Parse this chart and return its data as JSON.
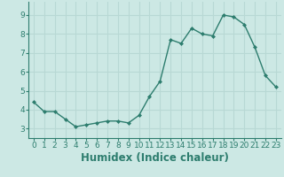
{
  "x": [
    0,
    1,
    2,
    3,
    4,
    5,
    6,
    7,
    8,
    9,
    10,
    11,
    12,
    13,
    14,
    15,
    16,
    17,
    18,
    19,
    20,
    21,
    22,
    23
  ],
  "y": [
    4.4,
    3.9,
    3.9,
    3.5,
    3.1,
    3.2,
    3.3,
    3.4,
    3.4,
    3.3,
    3.7,
    4.7,
    5.5,
    7.7,
    7.5,
    8.3,
    8.0,
    7.9,
    9.0,
    8.9,
    8.5,
    7.3,
    5.8,
    5.2
  ],
  "xlabel": "Humidex (Indice chaleur)",
  "xlim": [
    -0.5,
    23.5
  ],
  "ylim": [
    2.5,
    9.7
  ],
  "yticks": [
    3,
    4,
    5,
    6,
    7,
    8,
    9
  ],
  "xticks": [
    0,
    1,
    2,
    3,
    4,
    5,
    6,
    7,
    8,
    9,
    10,
    11,
    12,
    13,
    14,
    15,
    16,
    17,
    18,
    19,
    20,
    21,
    22,
    23
  ],
  "line_color": "#2d7d6e",
  "marker": "D",
  "marker_size": 2.0,
  "line_width": 1.0,
  "bg_color": "#cce8e4",
  "grid_color": "#b8d8d4",
  "tick_label_fontsize": 6.5,
  "xlabel_fontsize": 8.5,
  "spine_color": "#2d7d6e"
}
